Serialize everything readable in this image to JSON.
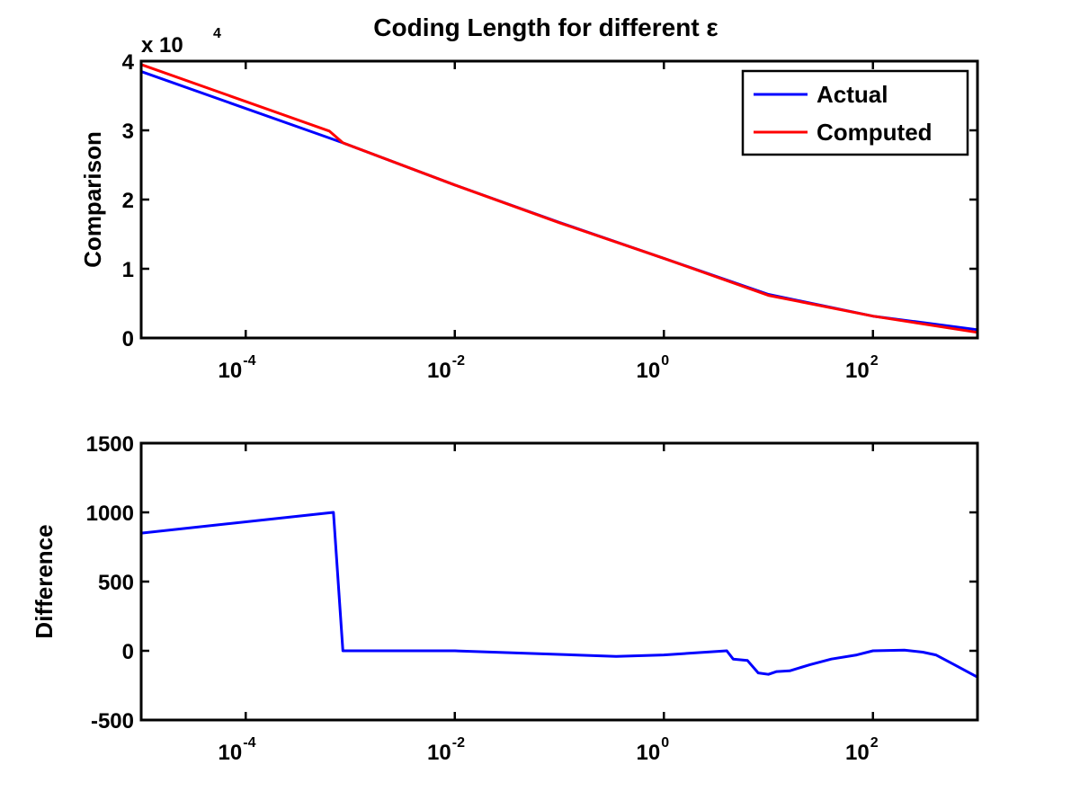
{
  "chart_data": [
    {
      "type": "line",
      "title": "Coding Length for different ε",
      "ylabel": "Comparison",
      "xlabel": "",
      "xscale": "log",
      "xlim": [
        1e-05,
        1000
      ],
      "ylim": [
        0,
        40000
      ],
      "y_multiplier": "x 10",
      "y_multiplier_exponent": "4",
      "yticks": [
        0,
        1,
        2,
        3,
        4
      ],
      "xticks": [
        0.0001,
        0.01,
        1,
        100
      ],
      "xtick_labels": [
        {
          "base": "10",
          "exp": "-4"
        },
        {
          "base": "10",
          "exp": "-2"
        },
        {
          "base": "10",
          "exp": "0"
        },
        {
          "base": "10",
          "exp": "2"
        }
      ],
      "legend_position": "top-right",
      "series": [
        {
          "name": "Actual",
          "color": "#0000ff",
          "points": [
            [
              1e-05,
              38500
            ],
            [
              0.00063,
              28900
            ],
            [
              0.00085,
              28200
            ],
            [
              0.01,
              22100
            ],
            [
              0.1,
              16700
            ],
            [
              1,
              11500
            ],
            [
              10,
              6300
            ],
            [
              100,
              3150
            ],
            [
              1000,
              1200
            ]
          ]
        },
        {
          "name": "Computed",
          "color": "#ff0000",
          "points": [
            [
              1e-05,
              39500
            ],
            [
              0.00063,
              29900
            ],
            [
              0.00085,
              28200
            ],
            [
              0.01,
              22100
            ],
            [
              0.1,
              16650
            ],
            [
              1,
              11500
            ],
            [
              10,
              6150
            ],
            [
              100,
              3150
            ],
            [
              1000,
              800
            ]
          ]
        }
      ]
    },
    {
      "type": "line",
      "title": "",
      "ylabel": "Difference",
      "xlabel": "",
      "xscale": "log",
      "xlim": [
        1e-05,
        1000
      ],
      "ylim": [
        -500,
        1500
      ],
      "yticks": [
        -500,
        0,
        500,
        1000,
        1500
      ],
      "xticks": [
        0.0001,
        0.01,
        1,
        100
      ],
      "xtick_labels": [
        {
          "base": "10",
          "exp": "-4"
        },
        {
          "base": "10",
          "exp": "-2"
        },
        {
          "base": "10",
          "exp": "0"
        },
        {
          "base": "10",
          "exp": "2"
        }
      ],
      "series": [
        {
          "color": "#0000ff",
          "points": [
            [
              1e-05,
              850
            ],
            [
              0.00069,
              1000
            ],
            [
              0.00085,
              0
            ],
            [
              0.01,
              0
            ],
            [
              0.35,
              -40
            ],
            [
              1,
              -30
            ],
            [
              4,
              0
            ],
            [
              4.6,
              -60
            ],
            [
              6.3,
              -70
            ],
            [
              8,
              -160
            ],
            [
              10,
              -170
            ],
            [
              12,
              -150
            ],
            [
              16,
              -145
            ],
            [
              25,
              -100
            ],
            [
              40,
              -60
            ],
            [
              70,
              -30
            ],
            [
              100,
              0
            ],
            [
              200,
              5
            ],
            [
              300,
              -10
            ],
            [
              400,
              -30
            ],
            [
              600,
              -100
            ],
            [
              1000,
              -190
            ]
          ]
        }
      ]
    }
  ]
}
